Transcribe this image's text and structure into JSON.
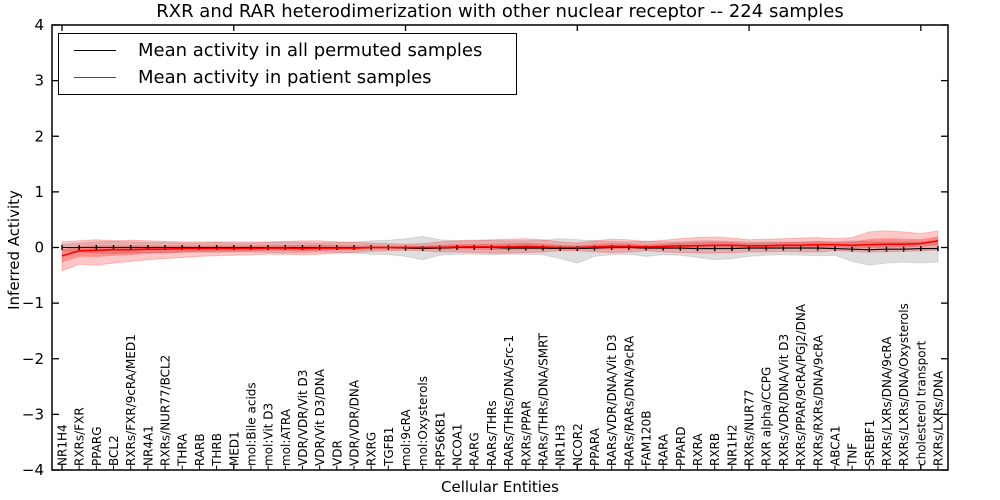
{
  "chart_data": {
    "type": "line",
    "title": "RXR and RAR heterodimerization with other nuclear receptor -- 224 samples",
    "xlabel": "Cellular Entities",
    "ylabel": "Inferred Activity",
    "ylim": [
      -4,
      4
    ],
    "yticks": [
      -4,
      -3,
      -2,
      -1,
      0,
      1,
      2,
      3,
      4
    ],
    "grid": false,
    "legend_position": "upper left",
    "categories": [
      "NR1H4",
      "RXRs/FXR",
      "PPARG",
      "BCL2",
      "RXRs/FXR/9cRA/MED1",
      "NR4A1",
      "RXRs/NUR77/BCL2",
      "THRA",
      "RARB",
      "THRB",
      "MED1",
      "mol:Bile acids",
      "mol:Vit D3",
      "mol:ATRA",
      "VDR/VDR/Vit D3",
      "VDR/Vit D3/DNA",
      "VDR",
      "VDR/VDR/DNA",
      "RXRG",
      "TGFB1",
      "mol:9cRA",
      "mol:Oxysterols",
      "RPS6KB1",
      "NCOA1",
      "RARG",
      "RARs/THRs",
      "RARs/THRs/DNA/Src-1",
      "RXRs/PPAR",
      "RARs/THRs/DNA/SMRT",
      "NR1H3",
      "NCOR2",
      "PPARA",
      "RARs/VDR/DNA/Vit D3",
      "RARs/RARs/DNA/9cRA",
      "FAM120B",
      "RARA",
      "PPARD",
      "RXRA",
      "RXRB",
      "NR1H2",
      "RXRs/NUR77",
      "RXR alpha/CCPG",
      "RXRs/VDR/DNA/Vit D3",
      "RXRs/PPAR/9cRA/PGJ2/DNA",
      "RXRs/RXRs/DNA/9cRA",
      "ABCA1",
      "TNF",
      "SREBF1",
      "RXRs/LXRs/DNA/9cRA",
      "RXRs/LXRs/DNA/Oxysterols",
      "cholesterol transport",
      "RXRs/LXRs/DNA"
    ],
    "series": [
      {
        "name": "Mean activity in all permuted samples",
        "color": "#000000",
        "values": [
          0,
          0,
          0,
          0,
          0,
          0,
          0,
          0,
          0,
          0,
          0,
          0,
          0,
          0,
          0,
          0,
          0,
          0,
          0,
          0,
          -0.01,
          -0.02,
          -0.01,
          0,
          0,
          0,
          -0.01,
          -0.01,
          -0.01,
          -0.02,
          -0.02,
          -0.01,
          0,
          0,
          -0.01,
          -0.01,
          -0.01,
          -0.02,
          -0.02,
          -0.02,
          -0.01,
          -0.01,
          -0.01,
          -0.01,
          -0.01,
          -0.02,
          -0.03,
          -0.04,
          -0.03,
          -0.03,
          -0.02,
          -0.02
        ],
        "band_lo": [
          -0.06,
          -0.08,
          -0.1,
          -0.11,
          -0.1,
          -0.09,
          -0.09,
          -0.08,
          -0.08,
          -0.09,
          -0.08,
          -0.08,
          -0.09,
          -0.1,
          -0.09,
          -0.08,
          -0.09,
          -0.1,
          -0.12,
          -0.13,
          -0.16,
          -0.22,
          -0.14,
          -0.12,
          -0.12,
          -0.13,
          -0.12,
          -0.12,
          -0.13,
          -0.2,
          -0.28,
          -0.16,
          -0.13,
          -0.12,
          -0.16,
          -0.13,
          -0.14,
          -0.18,
          -0.22,
          -0.2,
          -0.16,
          -0.14,
          -0.13,
          -0.14,
          -0.15,
          -0.14,
          -0.25,
          -0.32,
          -0.28,
          -0.26,
          -0.28,
          -0.26
        ],
        "band_hi": [
          0.06,
          0.08,
          0.1,
          0.11,
          0.1,
          0.09,
          0.09,
          0.08,
          0.08,
          0.09,
          0.08,
          0.08,
          0.09,
          0.1,
          0.09,
          0.08,
          0.09,
          0.1,
          0.12,
          0.13,
          0.16,
          0.2,
          0.14,
          0.12,
          0.12,
          0.13,
          0.12,
          0.12,
          0.13,
          0.16,
          0.14,
          0.12,
          0.11,
          0.1,
          0.12,
          0.1,
          0.1,
          0.12,
          0.12,
          0.11,
          0.1,
          0.1,
          0.1,
          0.1,
          0.11,
          0.1,
          0.12,
          0.1,
          0.1,
          0.1,
          0.1,
          0.1
        ]
      },
      {
        "name": "Mean activity in patient samples",
        "color": "#ff0000",
        "values": [
          -0.15,
          -0.06,
          -0.05,
          -0.04,
          -0.04,
          -0.03,
          -0.03,
          -0.02,
          -0.02,
          -0.02,
          -0.02,
          -0.02,
          -0.01,
          -0.01,
          -0.02,
          -0.01,
          -0.01,
          -0.01,
          0,
          0,
          0,
          0,
          0,
          0.01,
          0.01,
          0.01,
          0.01,
          0.02,
          0.01,
          0,
          0,
          0.01,
          0.02,
          0.02,
          0.01,
          0.02,
          0.03,
          0.03,
          0.04,
          0.04,
          0.03,
          0.03,
          0.04,
          0.04,
          0.05,
          0.05,
          0.04,
          0.05,
          0.06,
          0.06,
          0.07,
          0.12
        ],
        "band_lo": [
          -0.42,
          -0.3,
          -0.32,
          -0.28,
          -0.25,
          -0.22,
          -0.2,
          -0.18,
          -0.16,
          -0.15,
          -0.14,
          -0.13,
          -0.12,
          -0.12,
          -0.13,
          -0.12,
          -0.1,
          -0.09,
          -0.07,
          -0.06,
          -0.05,
          -0.06,
          -0.08,
          -0.08,
          -0.09,
          -0.1,
          -0.1,
          -0.09,
          -0.08,
          -0.06,
          -0.06,
          -0.08,
          -0.09,
          -0.08,
          -0.06,
          -0.08,
          -0.09,
          -0.1,
          -0.1,
          -0.09,
          -0.08,
          -0.08,
          -0.07,
          -0.08,
          -0.08,
          -0.06,
          -0.07,
          -0.08,
          -0.08,
          -0.07,
          -0.06,
          -0.05
        ],
        "band_hi": [
          0.1,
          0.12,
          0.14,
          0.12,
          0.13,
          0.12,
          0.11,
          0.1,
          0.1,
          0.1,
          0.1,
          0.1,
          0.1,
          0.11,
          0.12,
          0.12,
          0.1,
          0.09,
          0.08,
          0.07,
          0.06,
          0.07,
          0.1,
          0.12,
          0.13,
          0.14,
          0.15,
          0.16,
          0.14,
          0.1,
          0.08,
          0.12,
          0.15,
          0.14,
          0.1,
          0.13,
          0.16,
          0.18,
          0.19,
          0.17,
          0.14,
          0.15,
          0.16,
          0.17,
          0.18,
          0.16,
          0.18,
          0.28,
          0.3,
          0.28,
          0.25,
          0.3
        ]
      }
    ],
    "band_colors": {
      "permuted": "rgba(0,0,0,0.13)",
      "patient_outer": "rgba(255,0,0,0.22)",
      "patient_inner": "rgba(255,0,0,0.28)"
    }
  }
}
